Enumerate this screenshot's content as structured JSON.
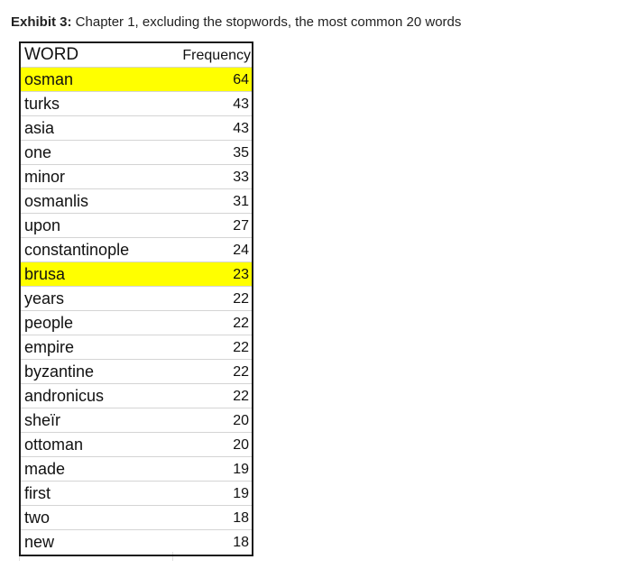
{
  "caption": {
    "bold": "Exhibit 3:",
    "text": " Chapter 1, excluding the stopwords, the most common 20 words"
  },
  "table": {
    "header": {
      "word": "WORD",
      "frequency": "Frequency"
    },
    "highlight_color": "#ffff00",
    "rows": [
      {
        "word": "osman",
        "frequency": "64",
        "highlighted": true
      },
      {
        "word": "turks",
        "frequency": "43",
        "highlighted": false
      },
      {
        "word": "asia",
        "frequency": "43",
        "highlighted": false
      },
      {
        "word": "one",
        "frequency": "35",
        "highlighted": false
      },
      {
        "word": "minor",
        "frequency": "33",
        "highlighted": false
      },
      {
        "word": "osmanlis",
        "frequency": "31",
        "highlighted": false
      },
      {
        "word": "upon",
        "frequency": "27",
        "highlighted": false
      },
      {
        "word": "constantinople",
        "frequency": "24",
        "highlighted": false
      },
      {
        "word": "brusa",
        "frequency": "23",
        "highlighted": true
      },
      {
        "word": "years",
        "frequency": "22",
        "highlighted": false
      },
      {
        "word": "people",
        "frequency": "22",
        "highlighted": false
      },
      {
        "word": "empire",
        "frequency": "22",
        "highlighted": false
      },
      {
        "word": "byzantine",
        "frequency": "22",
        "highlighted": false
      },
      {
        "word": "andronicus",
        "frequency": "22",
        "highlighted": false
      },
      {
        "word": "sheïr",
        "frequency": "20",
        "highlighted": false
      },
      {
        "word": "ottoman",
        "frequency": "20",
        "highlighted": false
      },
      {
        "word": "made",
        "frequency": "19",
        "highlighted": false
      },
      {
        "word": "first",
        "frequency": "19",
        "highlighted": false
      },
      {
        "word": "two",
        "frequency": "18",
        "highlighted": false
      },
      {
        "word": "new",
        "frequency": "18",
        "highlighted": false
      }
    ]
  }
}
